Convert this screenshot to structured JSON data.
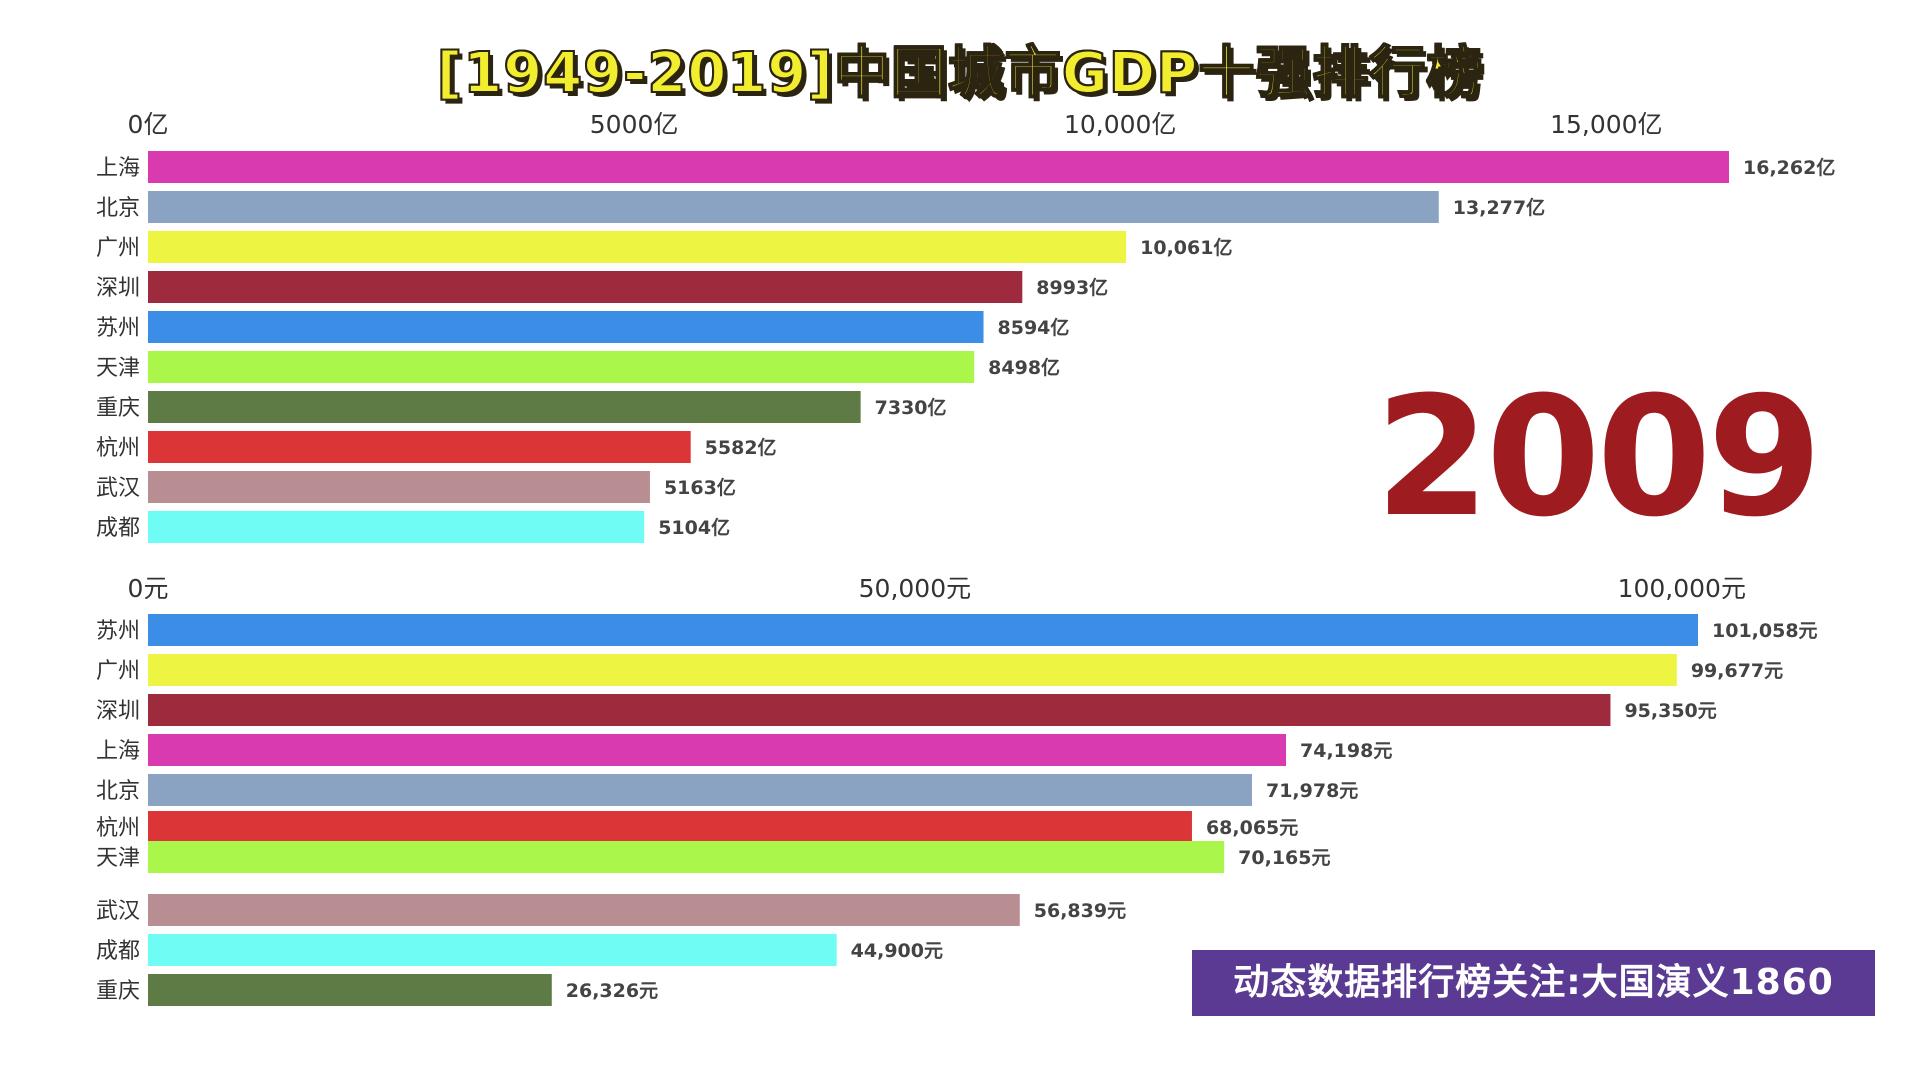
{
  "title": "[1949-2019]中国城市GDP十强排行榜",
  "year": "2009",
  "watermark": "动态数据排行榜关注:大国演义1860",
  "chart_data": [
    {
      "type": "bar",
      "orientation": "horizontal",
      "unit": "亿",
      "xlim": [
        0,
        16262
      ],
      "ticks": [
        {
          "value": 0,
          "label": "0亿"
        },
        {
          "value": 5000,
          "label": "5000亿"
        },
        {
          "value": 10000,
          "label": "10,000亿"
        },
        {
          "value": 15000,
          "label": "15,000亿"
        }
      ],
      "categories": [
        "上海",
        "北京",
        "广州",
        "深圳",
        "苏州",
        "天津",
        "重庆",
        "杭州",
        "武汉",
        "成都"
      ],
      "values": [
        16262,
        13277,
        10061,
        8993,
        8594,
        8498,
        7330,
        5582,
        5163,
        5104
      ],
      "value_labels": [
        "16,262亿",
        "13,277亿",
        "10,061亿",
        "8993亿",
        "8594亿",
        "8498亿",
        "7330亿",
        "5582亿",
        "5163亿",
        "5104亿"
      ],
      "colors": [
        "#d93ab0",
        "#8ba3c2",
        "#edf542",
        "#9e2a3e",
        "#3c8de6",
        "#aaf64a",
        "#5e7a45",
        "#db3538",
        "#b88e93",
        "#6ffcf5"
      ]
    },
    {
      "type": "bar",
      "orientation": "horizontal",
      "unit": "元",
      "xlim": [
        0,
        101058
      ],
      "ticks": [
        {
          "value": 0,
          "label": "0元"
        },
        {
          "value": 50000,
          "label": "50,000元"
        },
        {
          "value": 100000,
          "label": "100,000元"
        }
      ],
      "categories": [
        "苏州",
        "广州",
        "深圳",
        "上海",
        "北京",
        "杭州",
        "天津",
        "武汉",
        "成都",
        "重庆"
      ],
      "values": [
        101058,
        99677,
        95350,
        74198,
        71978,
        68065,
        70165,
        56839,
        44900,
        26326
      ],
      "value_labels": [
        "101,058元",
        "99,677元",
        "95,350元",
        "74,198元",
        "71,978元",
        "68,065元",
        "70,165元",
        "56,839元",
        "44,900元",
        "26,326元"
      ],
      "colors": [
        "#3c8de6",
        "#edf542",
        "#9e2a3e",
        "#d93ab0",
        "#8ba3c2",
        "#db3538",
        "#aaf64a",
        "#b88e93",
        "#6ffcf5",
        "#5e7a45"
      ]
    }
  ]
}
